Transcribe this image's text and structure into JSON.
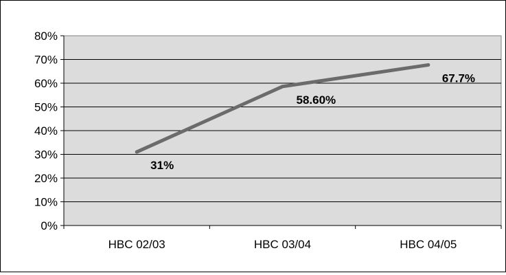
{
  "chart_data": {
    "type": "line",
    "categories": [
      "HBC 02/03",
      "HBC 03/04",
      "HBC 04/05"
    ],
    "series": [
      {
        "values": [
          31,
          58.6,
          67.7
        ],
        "color": "#6b6b6b"
      }
    ],
    "data_labels": [
      "31%",
      "58.60%",
      "67.7%"
    ],
    "y_ticks": [
      "0%",
      "10%",
      "20%",
      "30%",
      "40%",
      "50%",
      "60%",
      "70%",
      "80%"
    ],
    "ylim": [
      0,
      80
    ],
    "title": "",
    "xlabel": "",
    "ylabel": "",
    "grid": true,
    "legend": "none",
    "plot_background": "#dcdcdc"
  }
}
